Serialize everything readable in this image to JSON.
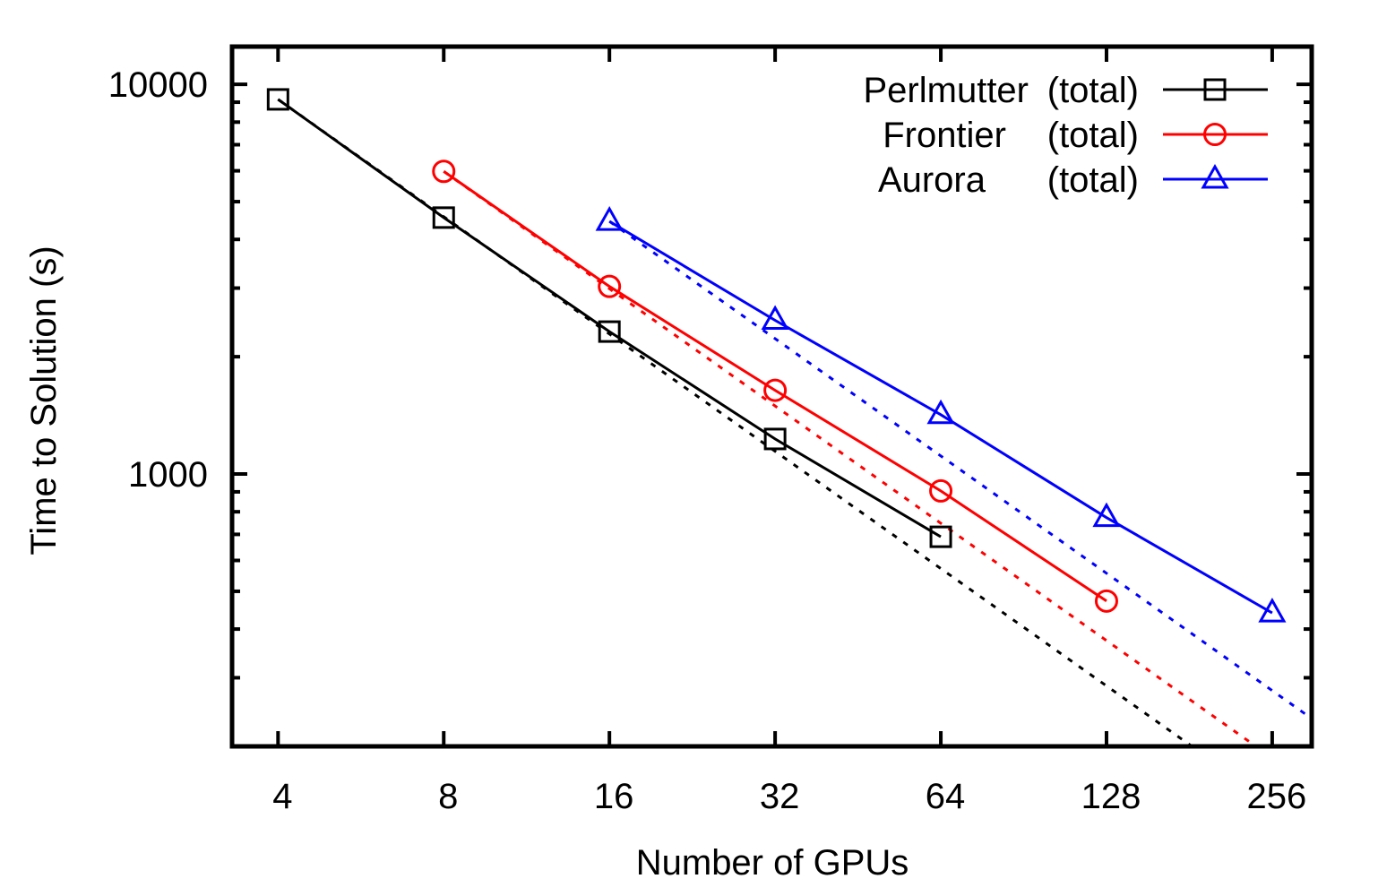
{
  "chart_data": {
    "type": "line",
    "title": "",
    "xlabel": "Number of GPUs",
    "ylabel": "Time to Solution (s)",
    "x_scale": "log2",
    "y_scale": "log10",
    "xlim": [
      3.3,
      302
    ],
    "ylim": [
      200,
      12500
    ],
    "x_ticks": [
      4,
      8,
      16,
      32,
      64,
      128,
      256
    ],
    "x_tick_labels": [
      "4",
      "8",
      "16",
      "32",
      "64",
      "128",
      "256"
    ],
    "y_ticks": [
      1000,
      10000
    ],
    "y_tick_labels": [
      "1000",
      "10000"
    ],
    "legend_position": "top-right",
    "series": [
      {
        "name": "Perlmutter",
        "legend_suffix": "(total)",
        "color": "#000000",
        "marker": "square",
        "x": [
          4,
          8,
          16,
          32,
          64
        ],
        "y": [
          9150,
          4550,
          2320,
          1230,
          690
        ],
        "ideal_scaling": {
          "from_x": 4,
          "from_y": 9150,
          "to_x": 302
        }
      },
      {
        "name": "Frontier",
        "legend_suffix": "(total)",
        "color": "#ff0000",
        "marker": "circle",
        "x": [
          8,
          16,
          32,
          64,
          128
        ],
        "y": [
          5980,
          3030,
          1640,
          905,
          472
        ],
        "ideal_scaling": {
          "from_x": 8,
          "from_y": 5980,
          "to_x": 302
        }
      },
      {
        "name": "Aurora",
        "legend_suffix": "(total)",
        "color": "#0000ff",
        "marker": "triangle",
        "x": [
          16,
          32,
          64,
          128,
          256
        ],
        "y": [
          4450,
          2480,
          1420,
          773,
          440
        ],
        "ideal_scaling": {
          "from_x": 16,
          "from_y": 4450,
          "to_x": 302
        }
      }
    ]
  }
}
